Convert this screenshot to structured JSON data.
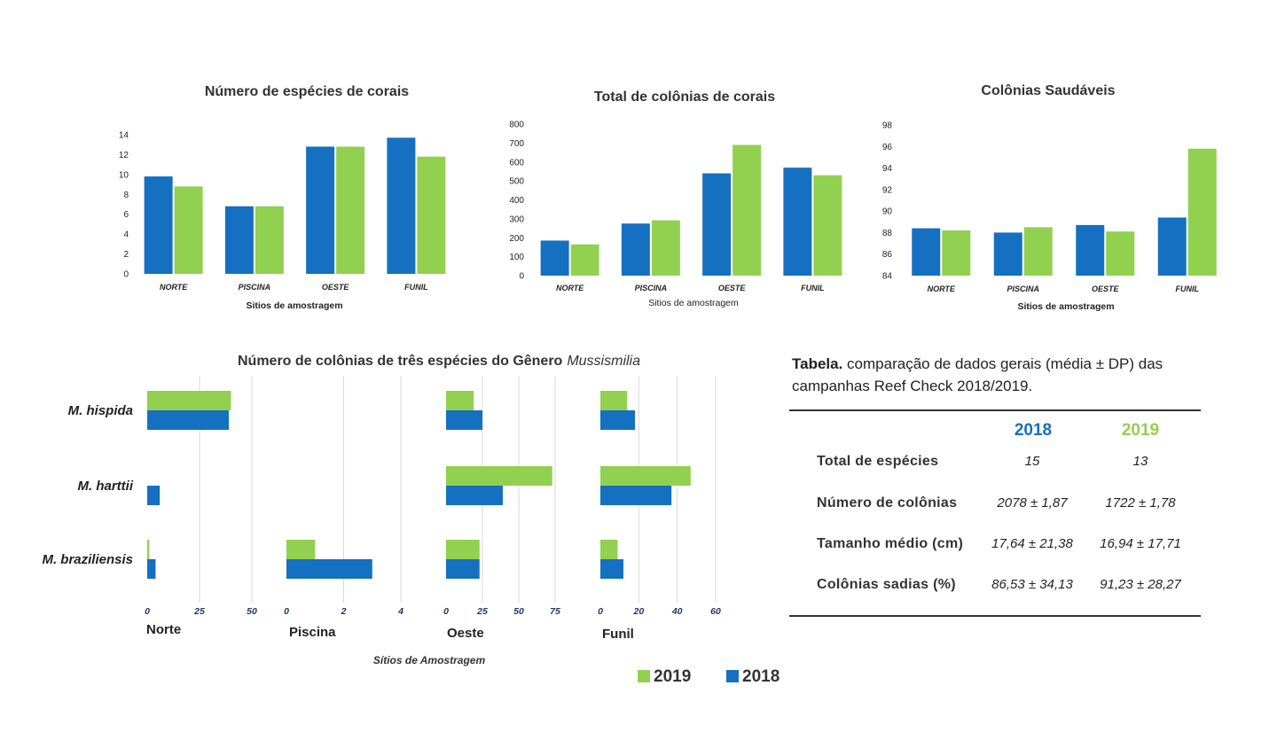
{
  "colors": {
    "y2018": "#1570C1",
    "y2019": "#92D050",
    "grid": "#d9d9d9",
    "axis_blue": "#1F3864"
  },
  "chart_data": [
    {
      "type": "bar",
      "title": "Número de espécies de corais",
      "xlabel": "Sitios de amostragem",
      "ylabel": "",
      "categories": [
        "NORTE",
        "PISCINA",
        "OESTE",
        "FUNIL"
      ],
      "ylim": [
        0,
        14
      ],
      "yticks": [
        0,
        2,
        4,
        6,
        8,
        10,
        12,
        14
      ],
      "series": [
        {
          "name": "2018",
          "values": [
            9.8,
            6.8,
            12.8,
            13.7
          ]
        },
        {
          "name": "2019",
          "values": [
            8.8,
            6.8,
            12.8,
            11.8
          ]
        }
      ]
    },
    {
      "type": "bar",
      "title": "Total de colônias de corais",
      "xlabel": "Sitios de amostragem",
      "ylabel": "",
      "categories": [
        "NORTE",
        "PISCINA",
        "OESTE",
        "FUNIL"
      ],
      "ylim": [
        0,
        800
      ],
      "yticks": [
        0,
        100,
        200,
        300,
        400,
        500,
        600,
        700,
        800
      ],
      "series": [
        {
          "name": "2018",
          "values": [
            185,
            275,
            540,
            570
          ]
        },
        {
          "name": "2019",
          "values": [
            165,
            292,
            690,
            530
          ]
        }
      ]
    },
    {
      "type": "bar",
      "title": "Colônias Saudáveis",
      "xlabel": "Sitios de amostragem",
      "ylabel": "",
      "categories": [
        "NORTE",
        "PISCINA",
        "OESTE",
        "FUNIL"
      ],
      "ylim": [
        84,
        98
      ],
      "yticks": [
        84,
        86,
        88,
        90,
        92,
        94,
        96,
        98
      ],
      "series": [
        {
          "name": "2018",
          "values": [
            88.4,
            88.0,
            88.7,
            89.4
          ]
        },
        {
          "name": "2019",
          "values": [
            88.2,
            88.5,
            88.1,
            95.8
          ]
        }
      ]
    },
    {
      "type": "bar",
      "orientation": "horizontal",
      "title_prefix": "Número de colônias de três espécies do Gênero",
      "title_genus": "Mussismilia",
      "xlabel": "Sítios de Amostragem",
      "categories": [
        "M. hispida",
        "M. harttii",
        "M. braziliensis"
      ],
      "legend": [
        "2019",
        "2018"
      ],
      "legend_position": "bottom",
      "panels": [
        {
          "site": "Norte",
          "xlim": [
            0,
            50
          ],
          "xticks": [
            0,
            25,
            50
          ],
          "series": [
            {
              "name": "2019",
              "values": [
                40,
                0,
                1
              ]
            },
            {
              "name": "2018",
              "values": [
                39,
                6,
                4
              ]
            }
          ]
        },
        {
          "site": "Piscina",
          "xlim": [
            0,
            4
          ],
          "xticks": [
            0,
            2,
            4
          ],
          "series": [
            {
              "name": "2019",
              "values": [
                0,
                0,
                1
              ]
            },
            {
              "name": "2018",
              "values": [
                0,
                0,
                3
              ]
            }
          ]
        },
        {
          "site": "Oeste",
          "xlim": [
            0,
            75
          ],
          "xticks": [
            0,
            25,
            50,
            75
          ],
          "series": [
            {
              "name": "2019",
              "values": [
                19,
                73,
                23
              ]
            },
            {
              "name": "2018",
              "values": [
                25,
                39,
                23
              ]
            }
          ]
        },
        {
          "site": "Funil",
          "xlim": [
            0,
            60
          ],
          "xticks": [
            0,
            20,
            40,
            60
          ],
          "series": [
            {
              "name": "2019",
              "values": [
                14,
                47,
                9
              ]
            },
            {
              "name": "2018",
              "values": [
                18,
                37,
                12
              ]
            }
          ]
        }
      ]
    },
    {
      "type": "table",
      "caption_bold": "Tabela.",
      "caption_rest": " comparação de dados gerais (média ± DP) das campanhas Reef Check 2018/2019.",
      "columns": [
        "2018",
        "2019"
      ],
      "rows": [
        {
          "label": "Total de espécies",
          "v2018": "15",
          "v2019": "13"
        },
        {
          "label": "Número de colônias",
          "v2018": "2078 ± 1,87",
          "v2019": "1722 ± 1,78"
        },
        {
          "label": "Tamanho médio (cm)",
          "v2018": "17,64 ± 21,38",
          "v2019": "16,94 ± 17,71"
        },
        {
          "label": "Colônias sadias (%)",
          "v2018": "86,53 ± 34,13",
          "v2019": "91,23 ± 28,27"
        }
      ]
    }
  ]
}
